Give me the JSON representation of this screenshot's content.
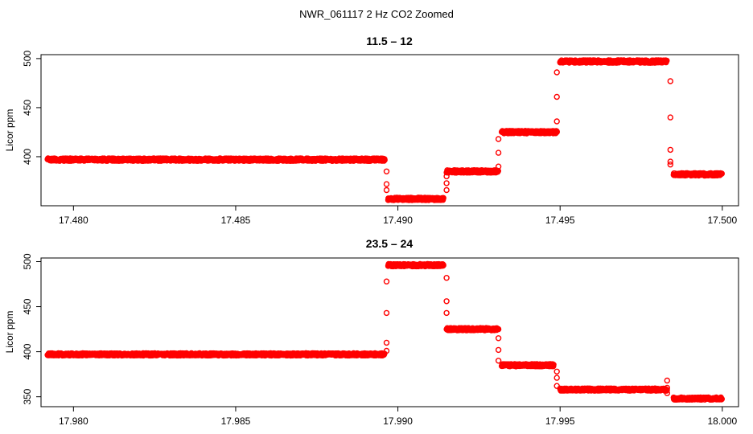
{
  "figure_title": "NWR_061117  2 Hz CO2 Zoomed",
  "chart_data": [
    {
      "type": "scatter",
      "title": "11.5 – 12",
      "xlabel": "",
      "ylabel": "Licor ppm",
      "xlim": [
        17.479,
        17.5005
      ],
      "ylim": [
        350,
        504
      ],
      "xticks": [
        17.48,
        17.485,
        17.49,
        17.495,
        17.5
      ],
      "xtick_labels": [
        "17.480",
        "17.485",
        "17.490",
        "17.495",
        "17.500"
      ],
      "yticks": [
        400,
        450,
        500
      ],
      "ytick_labels": [
        "400",
        "450",
        "500"
      ],
      "marker_color": "#ff0000",
      "segments": [
        {
          "x": [
            17.4792,
            17.4896
          ],
          "y": 397
        },
        {
          "x": [
            17.4897,
            17.4914
          ],
          "y": 357
        },
        {
          "x": [
            17.4915,
            17.4931
          ],
          "y": 385
        },
        {
          "x": [
            17.4932,
            17.4949
          ],
          "y": 425
        },
        {
          "x": [
            17.495,
            17.4983
          ],
          "y": 497
        },
        {
          "x": [
            17.4985,
            17.5
          ],
          "y": 382
        }
      ],
      "transitions": [
        {
          "x": 17.48965,
          "y": [
            385,
            372,
            366
          ]
        },
        {
          "x": 17.4915,
          "y": [
            366,
            373,
            380
          ]
        },
        {
          "x": 17.4931,
          "y": [
            390,
            404,
            418
          ]
        },
        {
          "x": 17.4949,
          "y": [
            436,
            461,
            486
          ]
        },
        {
          "x": 17.4984,
          "y": [
            477,
            440,
            407,
            395,
            392
          ]
        }
      ]
    },
    {
      "type": "scatter",
      "title": "23.5 – 24",
      "xlabel": "",
      "ylabel": "Licor ppm",
      "xlim": [
        17.979,
        18.0005
      ],
      "ylim": [
        339,
        504
      ],
      "xticks": [
        17.98,
        17.985,
        17.99,
        17.995,
        18.0
      ],
      "xtick_labels": [
        "17.980",
        "17.985",
        "17.990",
        "17.995",
        "18.000"
      ],
      "yticks": [
        350,
        400,
        450,
        500
      ],
      "ytick_labels": [
        "350",
        "400",
        "450",
        "500"
      ],
      "marker_color": "#ff0000",
      "segments": [
        {
          "x": [
            17.9792,
            17.9896
          ],
          "y": 397
        },
        {
          "x": [
            17.9897,
            17.9914
          ],
          "y": 496
        },
        {
          "x": [
            17.9915,
            17.9931
          ],
          "y": 425
        },
        {
          "x": [
            17.9932,
            17.9948
          ],
          "y": 385
        },
        {
          "x": [
            17.995,
            17.9983
          ],
          "y": 358
        },
        {
          "x": [
            17.9985,
            18.0
          ],
          "y": 348
        }
      ],
      "transitions": [
        {
          "x": 17.98965,
          "y": [
            401,
            410,
            443,
            478
          ]
        },
        {
          "x": 17.9915,
          "y": [
            482,
            456,
            443
          ]
        },
        {
          "x": 17.9931,
          "y": [
            415,
            402,
            390
          ]
        },
        {
          "x": 17.9949,
          "y": [
            378,
            371,
            362
          ]
        },
        {
          "x": 17.9983,
          "y": [
            368,
            360,
            354
          ]
        }
      ]
    }
  ]
}
